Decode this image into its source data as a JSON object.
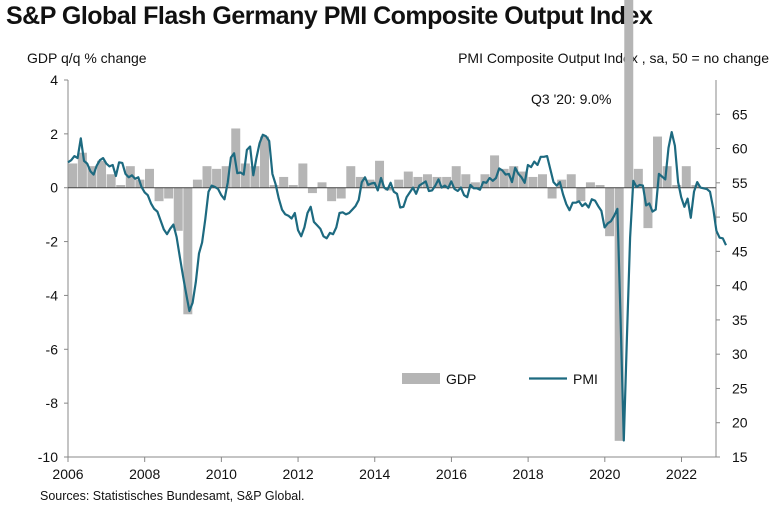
{
  "chart_data": {
    "type": "bar+line",
    "title": "S&P Global Flash Germany PMI Composite Output Index",
    "left_axis_label": "GDP q/q % change",
    "right_axis_label": "PMI Composite  Output  Index  , sa, 50 = no change",
    "source": "Sources: Statistisches Bundesamt, S&P Global.",
    "annotation": "Q3 '20: 9.0%",
    "left_ylim": [
      -10,
      4
    ],
    "left_ticks": [
      "4",
      "2",
      "0",
      "-2",
      "-4",
      "-6",
      "-8",
      "-10"
    ],
    "right_ylim": [
      15,
      70
    ],
    "right_ticks": [
      "65",
      "60",
      "55",
      "50",
      "45",
      "40",
      "35",
      "30",
      "25",
      "20",
      "15"
    ],
    "xlim": [
      2006.0,
      2022.9
    ],
    "x_ticks": [
      "2006",
      "2008",
      "2010",
      "2012",
      "2014",
      "2016",
      "2018",
      "2020",
      "2022"
    ],
    "legend": {
      "gdp": "GDP",
      "pmi": "PMI"
    },
    "colors": {
      "gdp": "#b5b5b5",
      "pmi": "#1d6a80"
    },
    "gdp": {
      "name": "GDP",
      "quarters": [
        2006.0,
        2006.25,
        2006.5,
        2006.75,
        2007.0,
        2007.25,
        2007.5,
        2007.75,
        2008.0,
        2008.25,
        2008.5,
        2008.75,
        2009.0,
        2009.25,
        2009.5,
        2009.75,
        2010.0,
        2010.25,
        2010.5,
        2010.75,
        2011.0,
        2011.25,
        2011.5,
        2011.75,
        2012.0,
        2012.25,
        2012.5,
        2012.75,
        2013.0,
        2013.25,
        2013.5,
        2013.75,
        2014.0,
        2014.25,
        2014.5,
        2014.75,
        2015.0,
        2015.25,
        2015.5,
        2015.75,
        2016.0,
        2016.25,
        2016.5,
        2016.75,
        2017.0,
        2017.25,
        2017.5,
        2017.75,
        2018.0,
        2018.25,
        2018.5,
        2018.75,
        2019.0,
        2019.25,
        2019.5,
        2019.75,
        2020.0,
        2020.25,
        2020.5,
        2020.75,
        2021.0,
        2021.25,
        2021.5,
        2021.75,
        2022.0,
        2022.25
      ],
      "values": [
        0.9,
        1.3,
        0.8,
        1.0,
        0.5,
        0.1,
        0.8,
        0.3,
        0.7,
        -0.5,
        -0.4,
        -1.6,
        -4.7,
        0.3,
        0.8,
        0.7,
        0.8,
        2.2,
        0.9,
        0.8,
        1.9,
        0.1,
        0.4,
        0.1,
        0.9,
        -0.2,
        0.2,
        -0.5,
        -0.4,
        0.8,
        0.4,
        0.3,
        1.0,
        -0.1,
        0.3,
        0.6,
        0.4,
        0.5,
        0.4,
        0.4,
        0.8,
        0.5,
        0.2,
        0.5,
        1.2,
        0.7,
        0.8,
        0.6,
        0.4,
        0.5,
        -0.4,
        0.3,
        0.5,
        -0.5,
        0.2,
        0.1,
        -1.8,
        -9.4,
        9.0,
        0.7,
        -1.5,
        1.9,
        0.8,
        0.1,
        0.8,
        0.1
      ]
    },
    "pmi": {
      "name": "PMI",
      "start": 2006.0,
      "step": 0.0833,
      "values": [
        58.0,
        58.3,
        58.9,
        58.6,
        61.5,
        58.2,
        57.8,
        56.7,
        56.2,
        57.5,
        58.3,
        58.6,
        57.8,
        57.4,
        57.6,
        56.0,
        58.0,
        57.9,
        56.3,
        55.8,
        56.1,
        55.6,
        55.8,
        54.4,
        53.6,
        53.2,
        52.0,
        51.2,
        50.8,
        49.5,
        48.2,
        47.5,
        48.3,
        48.9,
        47.1,
        44.2,
        41.4,
        38.8,
        36.3,
        37.5,
        40.5,
        44.7,
        46.3,
        49.7,
        53.7,
        54.6,
        54.4,
        54.1,
        53.2,
        52.6,
        55.0,
        58.7,
        59.3,
        56.4,
        56.5,
        56.2,
        59.8,
        60.3,
        56.1,
        58.6,
        60.8,
        62.0,
        61.8,
        61.1,
        56.3,
        54.8,
        52.7,
        51.1,
        50.4,
        50.2,
        49.8,
        50.6,
        48.1,
        47.2,
        48.5,
        50.6,
        51.5,
        49.3,
        48.8,
        48.3,
        47.2,
        46.9,
        47.7,
        47.5,
        48.5,
        50.6,
        50.7,
        50.4,
        50.6,
        51.1,
        51.6,
        52.5,
        55.1,
        55.8,
        54.7,
        54.9,
        55.0,
        53.9,
        55.7,
        54.3,
        54.0,
        55.0,
        53.7,
        53.4,
        51.4,
        51.5,
        52.9,
        53.6,
        54.3,
        53.4,
        54.6,
        54.9,
        55.2,
        53.8,
        53.9,
        54.6,
        55.5,
        54.3,
        54.6,
        54.2,
        55.2,
        54.1,
        53.8,
        54.3,
        53.2,
        52.9,
        54.7,
        54.2,
        54.2,
        54.0,
        55.1,
        55.0,
        55.7,
        55.3,
        55.7,
        57.1,
        56.8,
        56.2,
        56.3,
        55.1,
        57.2,
        56.3,
        55.8,
        55.0,
        57.6,
        57.3,
        58.1,
        57.6,
        58.8,
        58.8,
        58.9,
        57.0,
        55.1,
        54.6,
        55.1,
        53.3,
        51.9,
        51.0,
        52.1,
        52.1,
        52.3,
        51.6,
        52.0,
        51.4,
        52.6,
        52.4,
        51.6,
        50.9,
        48.5,
        49.1,
        49.4,
        50.2,
        51.2,
        35.0,
        17.4,
        32.3,
        47.0,
        55.3,
        54.4,
        54.7,
        54.6,
        51.7,
        52.0,
        50.8,
        51.1,
        56.3,
        55.9,
        55.5,
        60.1,
        62.4,
        60.4,
        55.1,
        52.9,
        51.5,
        52.7,
        49.9,
        53.7,
        55.1,
        54.3,
        54.2,
        54.1,
        53.7,
        51.3,
        48.0,
        47.0,
        46.9,
        45.9
      ]
    }
  }
}
